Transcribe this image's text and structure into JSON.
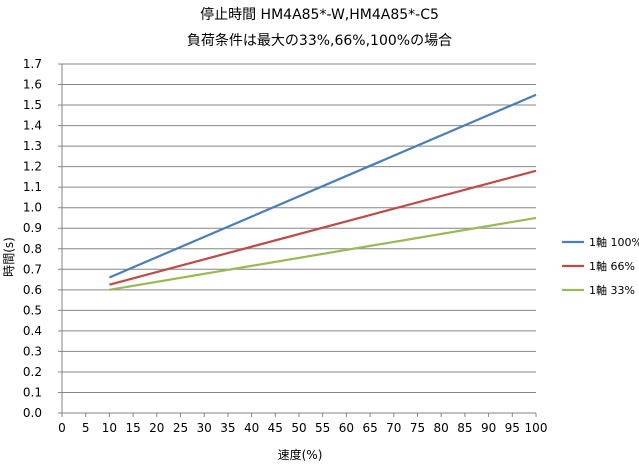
{
  "chart_data": {
    "type": "line",
    "title": "停止時間 HM4A85*-W,HM4A85*-C5",
    "subtitle": "負荷条件は最大の33%,66%,100%の場合",
    "xlabel": "速度(%)",
    "ylabel": "時間(s)",
    "xlim": [
      0,
      100
    ],
    "ylim": [
      0.0,
      1.7
    ],
    "x_ticks": [
      "0",
      "5",
      "10",
      "15",
      "20",
      "25",
      "30",
      "35",
      "40",
      "45",
      "50",
      "55",
      "60",
      "65",
      "70",
      "75",
      "80",
      "85",
      "90",
      "95",
      "100"
    ],
    "y_ticks": [
      "0.0",
      "0.1",
      "0.2",
      "0.3",
      "0.4",
      "0.5",
      "0.6",
      "0.7",
      "0.8",
      "0.9",
      "1.0",
      "1.1",
      "1.2",
      "1.3",
      "1.4",
      "1.5",
      "1.6",
      "1.7"
    ],
    "grid": "horizontal",
    "legend_position": "right",
    "series": [
      {
        "name": "1軸 100%",
        "color": "#4a7ebb",
        "x": [
          10,
          100
        ],
        "y": [
          0.66,
          1.55
        ]
      },
      {
        "name": "1軸 66%",
        "color": "#be4b48",
        "x": [
          10,
          100
        ],
        "y": [
          0.625,
          1.18
        ]
      },
      {
        "name": "1軸 33%",
        "color": "#98b954",
        "x": [
          10,
          100
        ],
        "y": [
          0.6,
          0.95
        ]
      }
    ]
  }
}
